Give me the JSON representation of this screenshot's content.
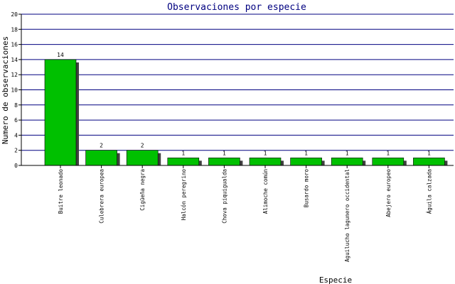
{
  "chart_data": {
    "type": "bar",
    "title": "Observaciones por especie",
    "xlabel": "Especie",
    "ylabel": "Numero de observaciones",
    "categories": [
      "Buitre leonado",
      "Culebrera europea",
      "Cigüeña negra",
      "Halcón peregrino",
      "Chova piquigualda",
      "Alimoche común",
      "Busardo moro",
      "Aguilucho lagunero occidental",
      "Abejero europeo",
      "Águila calzada"
    ],
    "values": [
      14,
      2,
      2,
      1,
      1,
      1,
      1,
      1,
      1,
      1
    ],
    "data_labels": [
      "14",
      "2",
      "2",
      "1",
      "1",
      "1",
      "1",
      "1",
      "1",
      "1"
    ],
    "ylim": [
      0,
      20
    ],
    "yticks": [
      0,
      2,
      4,
      6,
      8,
      10,
      12,
      14,
      16,
      18,
      20
    ],
    "grid": true,
    "legend": "none",
    "colors": {
      "bar": "#00c000",
      "bar_shadow": "#404040",
      "grid": "#000080",
      "axis": "#000000",
      "title": "#000080",
      "text": "#000000"
    }
  }
}
